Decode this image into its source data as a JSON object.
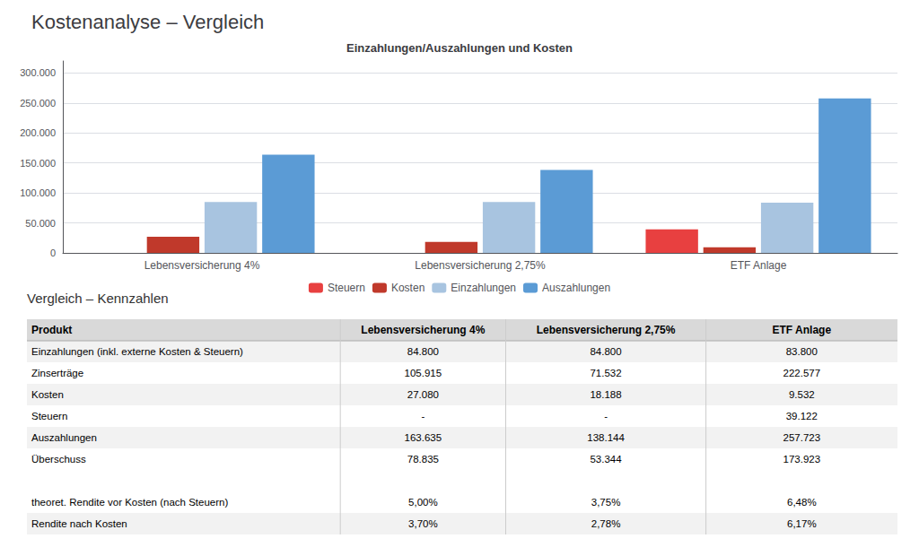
{
  "chart_data": {
    "type": "bar",
    "title": "Kostenanalyse – Vergleich",
    "subtitle": "Einzahlungen/Auszahlungen und Kosten",
    "categories": [
      "Lebensversicherung 4%",
      "Lebensversicherung 2,75%",
      "ETF Anlage"
    ],
    "series": [
      {
        "name": "Steuern",
        "color": "#e84040",
        "values": [
          0,
          0,
          39122
        ]
      },
      {
        "name": "Kosten",
        "color": "#c0392b",
        "values": [
          27080,
          18188,
          9532
        ]
      },
      {
        "name": "Einzahlungen",
        "color": "#a8c4e0",
        "values": [
          84800,
          84800,
          83800
        ]
      },
      {
        "name": "Auszahlungen",
        "color": "#5b9bd5",
        "values": [
          163635,
          138144,
          257723
        ]
      }
    ],
    "ylim": [
      0,
      320000
    ],
    "yticks": [
      0,
      {
        "value": 50000,
        "label": "50.000"
      },
      {
        "value": 100000,
        "label": "100.000"
      },
      {
        "value": 150000,
        "label": "150.000"
      },
      {
        "value": 200000,
        "label": "200.000"
      },
      {
        "value": 250000,
        "label": "250.000"
      },
      {
        "value": 300000,
        "label": "300.000"
      }
    ],
    "grid": true,
    "legend": "bottom"
  },
  "table": {
    "title": "Vergleich – Kennzahlen",
    "header": [
      "Produkt",
      "Lebensversicherung 4%",
      "Lebensversicherung 2,75%",
      "ETF Anlage"
    ],
    "rows": [
      [
        "Einzahlungen (inkl. externe Kosten & Steuern)",
        "84.800",
        "84.800",
        "83.800"
      ],
      [
        "Zinserträge",
        "105.915",
        "71.532",
        "222.577"
      ],
      [
        "Kosten",
        "27.080",
        "18.188",
        "9.532"
      ],
      [
        "Steuern",
        "-",
        "-",
        "39.122"
      ],
      [
        "Auszahlungen",
        "163.635",
        "138.144",
        "257.723"
      ],
      [
        "Überschuss",
        "78.835",
        "53.344",
        "173.923"
      ],
      null,
      [
        "theoret. Rendite vor Kosten (nach Steuern)",
        "5,00%",
        "3,75%",
        "6,48%"
      ],
      [
        "Rendite nach Kosten",
        "3,70%",
        "2,78%",
        "6,17%"
      ]
    ]
  }
}
